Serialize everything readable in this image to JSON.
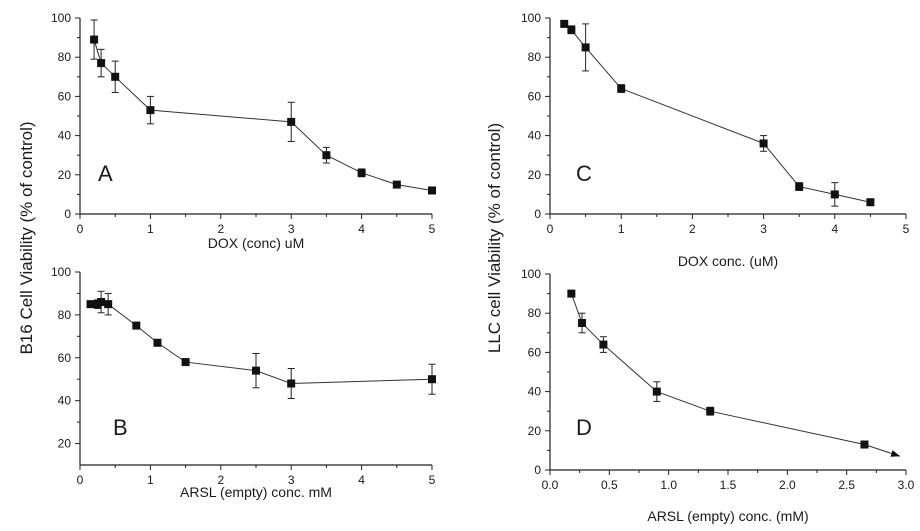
{
  "figure": {
    "left_ylabel": "B16  Cell  Viability (% of control)",
    "right_ylabel": "LLC cell Viability (% of control)"
  },
  "chart_data": [
    {
      "type": "line",
      "panel": "A",
      "xlabel": "DOX (conc) uM",
      "xlim": [
        0,
        5
      ],
      "ylim": [
        0,
        100
      ],
      "xticks": [
        "0",
        "1",
        "2",
        "3",
        "4",
        "5"
      ],
      "yticks": [
        "0",
        "20",
        "40",
        "60",
        "80",
        "100"
      ],
      "x": [
        0.2,
        0.3,
        0.5,
        1.0,
        3.0,
        3.5,
        4.0,
        4.5,
        5.0
      ],
      "y": [
        89,
        77,
        70,
        53,
        47,
        30,
        21,
        15,
        12
      ],
      "err": [
        10,
        7,
        8,
        7,
        10,
        4,
        2,
        1,
        1.5
      ]
    },
    {
      "type": "line",
      "panel": "B",
      "xlabel": "ARSL (empty) conc. mM",
      "xlim": [
        0,
        5
      ],
      "ylim": [
        10,
        100
      ],
      "xticks": [
        "0",
        "1",
        "2",
        "3",
        "4",
        "5"
      ],
      "yticks": [
        "20",
        "40",
        "60",
        "80",
        "100"
      ],
      "x": [
        0.15,
        0.25,
        0.3,
        0.4,
        0.8,
        1.1,
        1.5,
        2.5,
        3.0,
        5.0
      ],
      "y": [
        85,
        85,
        86,
        85,
        75,
        67,
        58,
        54,
        48,
        50
      ],
      "err": [
        1.5,
        2,
        5,
        5,
        1,
        1.5,
        1,
        8,
        7,
        7
      ]
    },
    {
      "type": "line",
      "panel": "C",
      "xlabel": "DOX conc. (uM)",
      "xlim": [
        0,
        5
      ],
      "ylim": [
        0,
        100
      ],
      "xticks": [
        "0",
        "1",
        "2",
        "3",
        "4",
        "5"
      ],
      "yticks": [
        "0",
        "20",
        "40",
        "60",
        "80",
        "100"
      ],
      "x": [
        0.2,
        0.3,
        0.5,
        1.0,
        3.0,
        3.5,
        4.0,
        4.5
      ],
      "y": [
        97,
        94,
        85,
        64,
        36,
        14,
        10,
        6
      ],
      "err": [
        1,
        2,
        12,
        2,
        4,
        2,
        6,
        1
      ]
    },
    {
      "type": "line",
      "panel": "D",
      "xlabel": "ARSL (empty) conc. (mM)",
      "xlim": [
        0,
        3.0
      ],
      "ylim": [
        0,
        100
      ],
      "xticks": [
        "0.0",
        "0.5",
        "1.0",
        "1.5",
        "2.0",
        "2.5",
        "3.0"
      ],
      "yticks": [
        "0",
        "20",
        "40",
        "60",
        "80",
        "100"
      ],
      "x": [
        0.18,
        0.27,
        0.45,
        0.9,
        1.35,
        2.65
      ],
      "y": [
        90,
        75,
        64,
        40,
        30,
        13
      ],
      "err": [
        1,
        5,
        4,
        5,
        2,
        1
      ],
      "arrow_end_x": 2.95,
      "arrow_end_y": 7
    }
  ]
}
